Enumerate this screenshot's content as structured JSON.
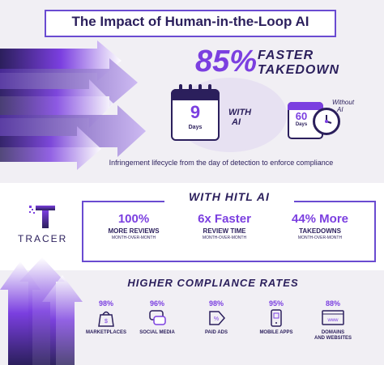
{
  "title": "The Impact of Human-in-the-Loop AI",
  "hero": {
    "percent": "85%",
    "faster": "FASTER",
    "takedown": "TAKEDOWN",
    "with_ai_days": "9",
    "with_ai_days_label": "Days",
    "with_ai_line1": "WITH",
    "with_ai_line2": "AI",
    "without_ai_days": "60",
    "without_ai_days_label": "Days",
    "without_ai_line1": "Without",
    "without_ai_line2": "AI",
    "caption": "Infringement lifecycle from the day of detection to enforce compliance"
  },
  "brand": {
    "name": "TRACER"
  },
  "hitl": {
    "title": "WITH HITL AI",
    "stats": [
      {
        "value": "100%",
        "label": "MORE REVIEWS",
        "sub": "MONTH-OVER-MONTH"
      },
      {
        "value": "6x Faster",
        "label": "REVIEW TIME",
        "sub": "MONTH-OVER-MONTH"
      },
      {
        "value": "44% More",
        "label": "TAKEDOWNS",
        "sub": "MONTH-OVER-MONTH"
      }
    ]
  },
  "compliance": {
    "title": "HIGHER COMPLIANCE RATES",
    "items": [
      {
        "pct": "98%",
        "label": "MARKETPLACES",
        "label2": "",
        "icon": "marketplace-bag-icon"
      },
      {
        "pct": "96%",
        "label": "SOCIAL MEDIA",
        "label2": "",
        "icon": "social-media-chat-icon"
      },
      {
        "pct": "98%",
        "label": "PAID ADS",
        "label2": "",
        "icon": "paid-ads-tag-icon"
      },
      {
        "pct": "95%",
        "label": "MOBILE APPS",
        "label2": "",
        "icon": "mobile-apps-phone-icon"
      },
      {
        "pct": "88%",
        "label": "DOMAINS",
        "label2": "AND WEBSITES",
        "icon": "domains-www-icon"
      }
    ]
  },
  "colors": {
    "purple": "#7b3fe0",
    "navy": "#2b1f5c",
    "border": "#6a4bd1",
    "band": "#f1eff4"
  }
}
